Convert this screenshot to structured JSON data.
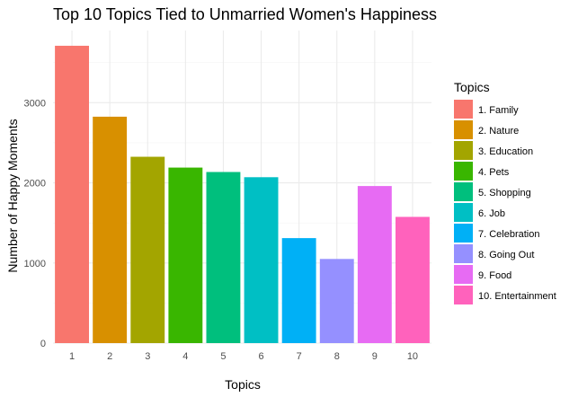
{
  "chart_data": {
    "type": "bar",
    "title": "Top 10 Topics Tied to Unmarried Women's Happiness",
    "xlabel": "Topics",
    "ylabel": "Number of Happy Moments",
    "categories": [
      "1",
      "2",
      "3",
      "4",
      "5",
      "6",
      "7",
      "8",
      "9",
      "10"
    ],
    "values": [
      3710,
      2825,
      2325,
      2190,
      2135,
      2070,
      1310,
      1050,
      1960,
      1575
    ],
    "colors": [
      "#F8766D",
      "#D89000",
      "#A3A500",
      "#39B600",
      "#00BF7D",
      "#00BFC4",
      "#00B0F6",
      "#9590FF",
      "#E76BF3",
      "#FF62BC"
    ],
    "ylim": [
      0,
      3900
    ],
    "yticks": [
      0,
      1000,
      2000,
      3000
    ],
    "grid": true,
    "legend": {
      "title": "Topics",
      "placement": "right",
      "entries": [
        "1. Family",
        "2. Nature",
        "3. Education",
        "4. Pets",
        "5. Shopping",
        "6. Job",
        "7. Celebration",
        "8. Going Out",
        "9. Food",
        "10. Entertainment"
      ]
    }
  }
}
